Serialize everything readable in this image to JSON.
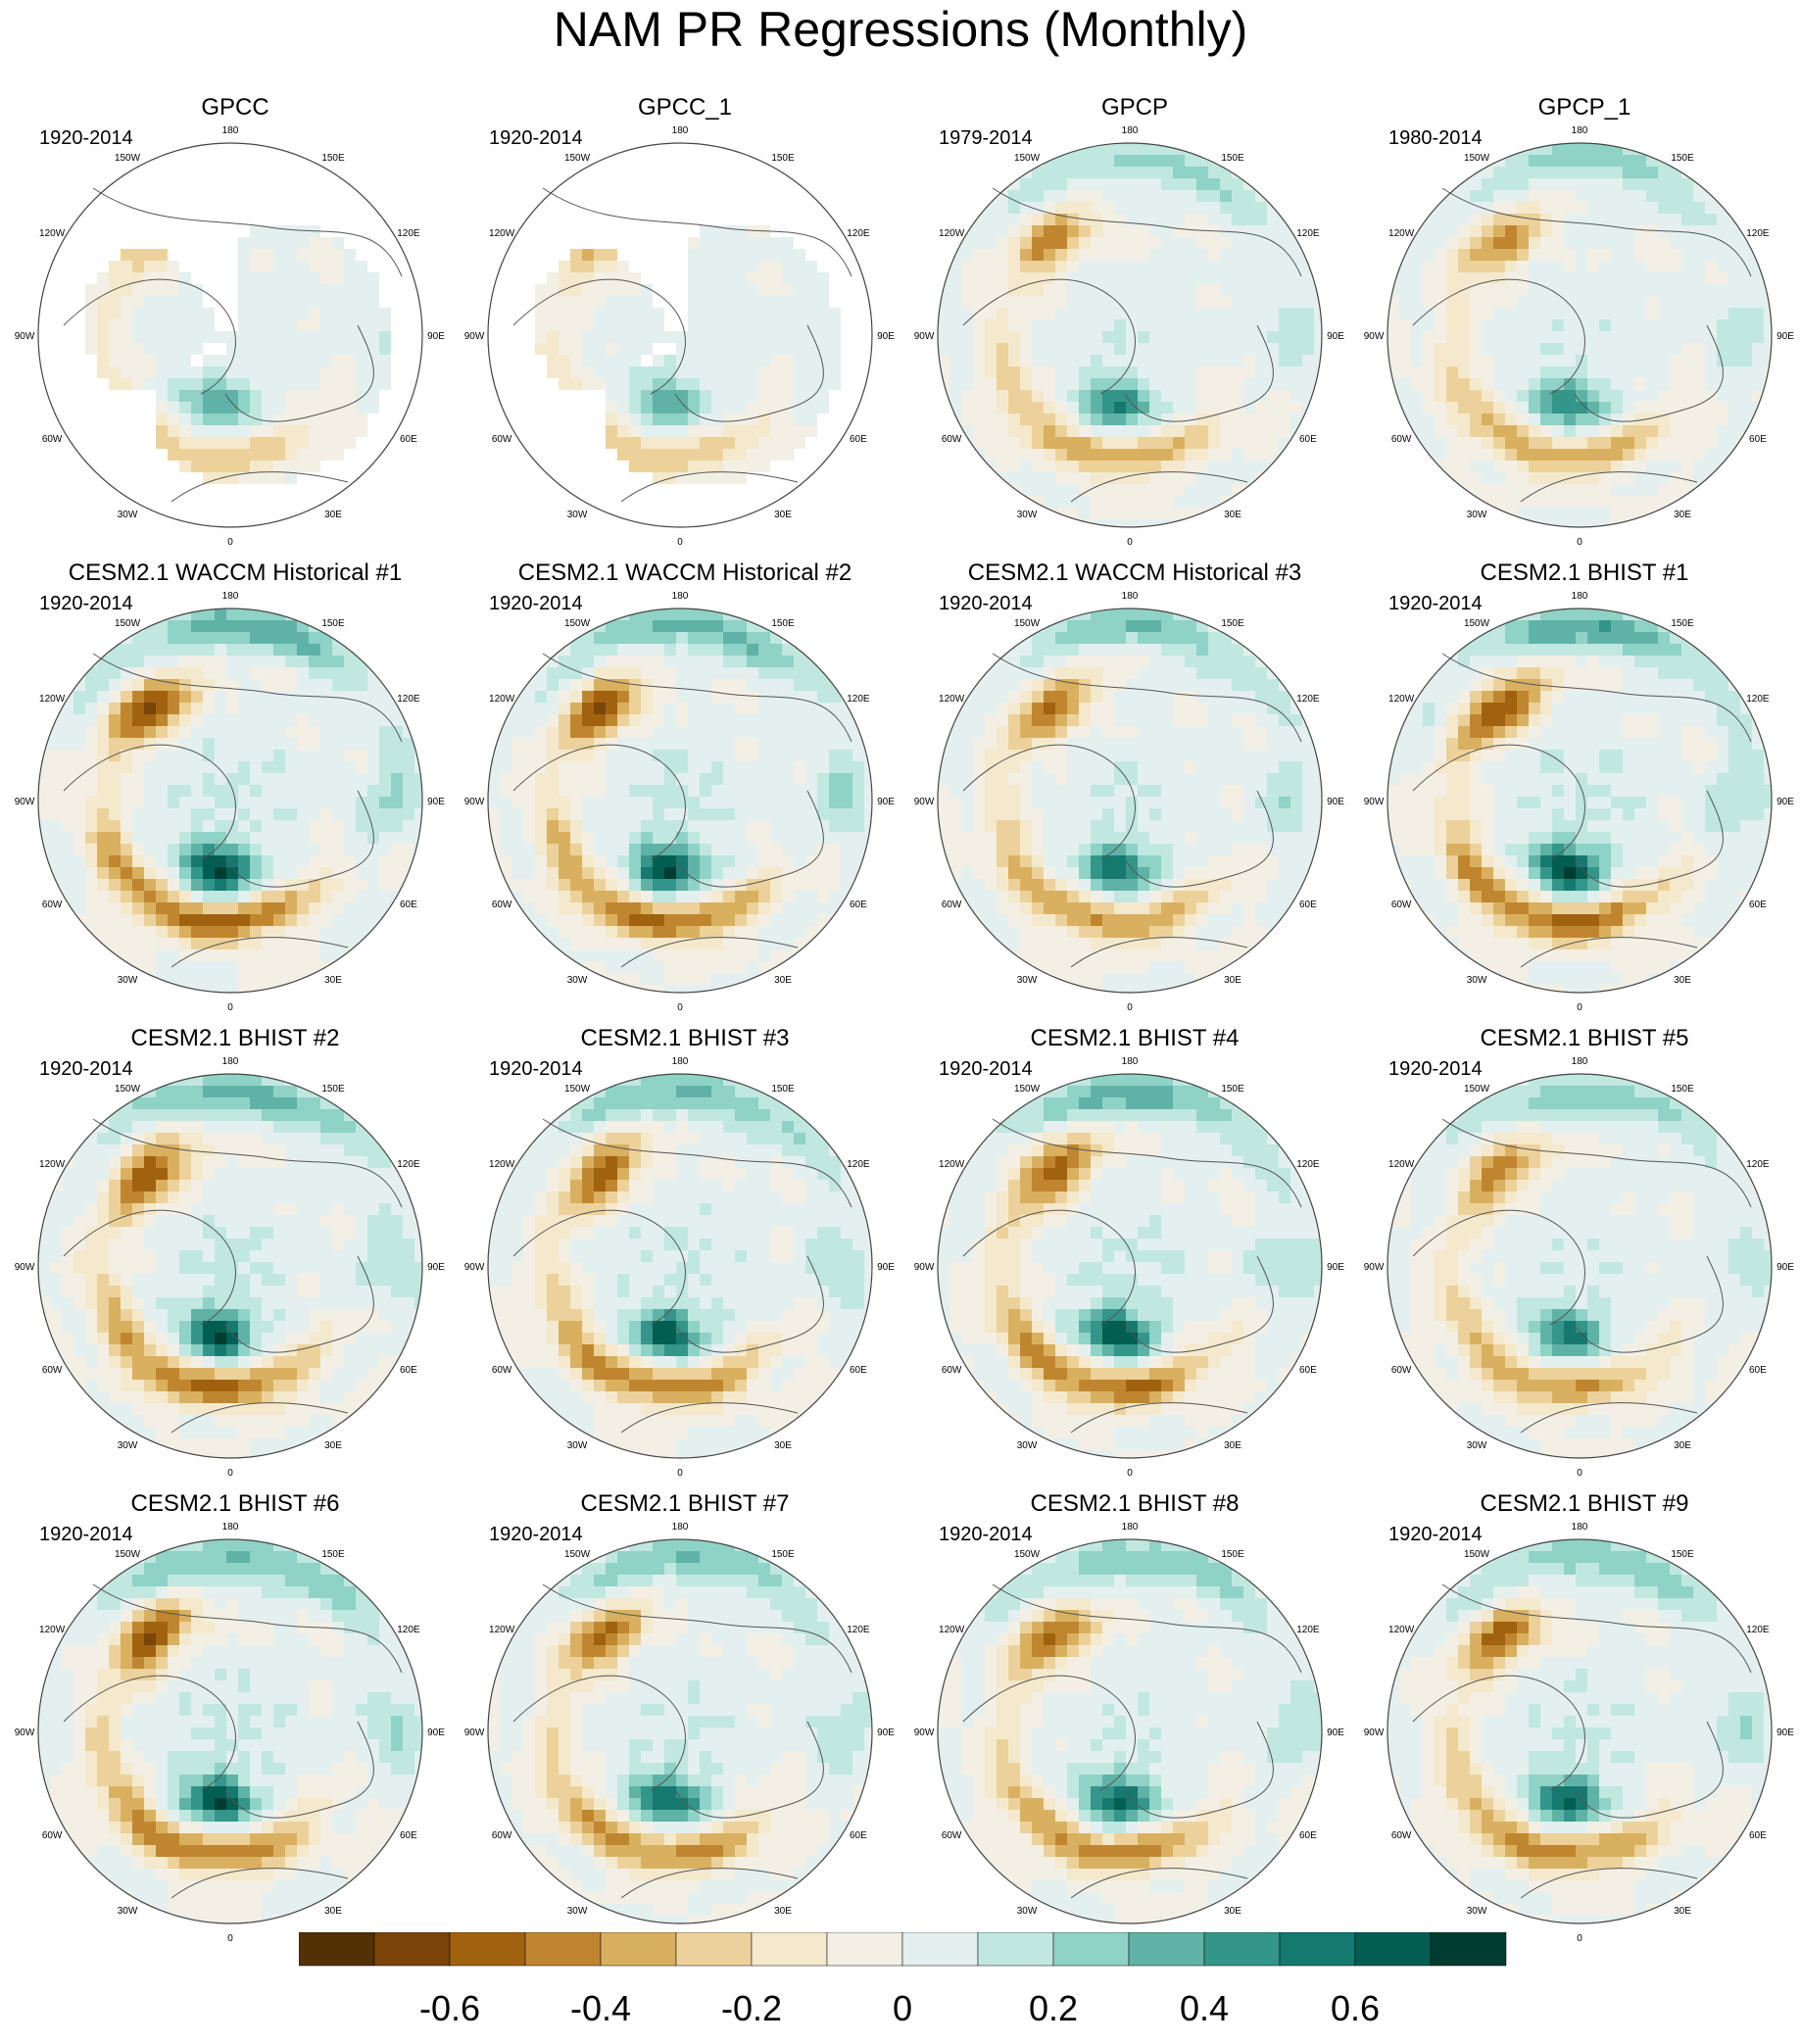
{
  "title": "NAM PR Regressions (Monthly)",
  "panels": [
    {
      "title": "GPCC",
      "period": "1920-2014",
      "kind": "obs_land",
      "amp": 0.55
    },
    {
      "title": "GPCC_1",
      "period": "1920-2014",
      "kind": "obs_land",
      "amp": 0.55
    },
    {
      "title": "GPCP",
      "period": "1979-2014",
      "kind": "obs_full",
      "amp": 0.7
    },
    {
      "title": "GPCP_1",
      "period": "1980-2014",
      "kind": "obs_full",
      "amp": 0.7
    },
    {
      "title": "CESM2.1 WACCM Historical #1",
      "period": "1920-2014",
      "kind": "model",
      "amp": 1.0
    },
    {
      "title": "CESM2.1 WACCM Historical #2",
      "period": "1920-2014",
      "kind": "model",
      "amp": 0.95
    },
    {
      "title": "CESM2.1 WACCM Historical #3",
      "period": "1920-2014",
      "kind": "model",
      "amp": 0.8
    },
    {
      "title": "CESM2.1 BHIST #1",
      "period": "1920-2014",
      "kind": "model",
      "amp": 1.0
    },
    {
      "title": "CESM2.1 BHIST #2",
      "period": "1920-2014",
      "kind": "model",
      "amp": 0.95
    },
    {
      "title": "CESM2.1 BHIST #3",
      "period": "1920-2014",
      "kind": "model",
      "amp": 0.9
    },
    {
      "title": "CESM2.1 BHIST #4",
      "period": "1920-2014",
      "kind": "model",
      "amp": 0.95
    },
    {
      "title": "CESM2.1 BHIST #5",
      "period": "1920-2014",
      "kind": "model",
      "amp": 0.75
    },
    {
      "title": "CESM2.1 BHIST #6",
      "period": "1920-2014",
      "kind": "model",
      "amp": 0.95
    },
    {
      "title": "CESM2.1 BHIST #7",
      "period": "1920-2014",
      "kind": "model",
      "amp": 0.85
    },
    {
      "title": "CESM2.1 BHIST #8",
      "period": "1920-2014",
      "kind": "model",
      "amp": 0.85
    },
    {
      "title": "CESM2.1 BHIST #9",
      "period": "1920-2014",
      "kind": "model",
      "amp": 0.85
    }
  ],
  "longitude_labels": [
    "180",
    "150E",
    "120E",
    "90E",
    "60E",
    "30E",
    "0",
    "30W",
    "60W",
    "90W",
    "120W",
    "150W"
  ],
  "colorbar": {
    "colors": [
      "#543005",
      "#7b4509",
      "#a1620f",
      "#c0862f",
      "#d9b060",
      "#ecd29a",
      "#f4e9cc",
      "#f3efe4",
      "#e3f0ef",
      "#c1e7e1",
      "#8fd2c6",
      "#5fb3a6",
      "#34958a",
      "#16796f",
      "#035e52",
      "#003c30"
    ],
    "tick_labels": [
      "-0.6",
      "-0.4",
      "-0.2",
      "0",
      "0.2",
      "0.4",
      "0.6"
    ]
  },
  "colors": {
    "coastline": "#555555",
    "frame": "#444444",
    "missing": "#ffffff"
  }
}
